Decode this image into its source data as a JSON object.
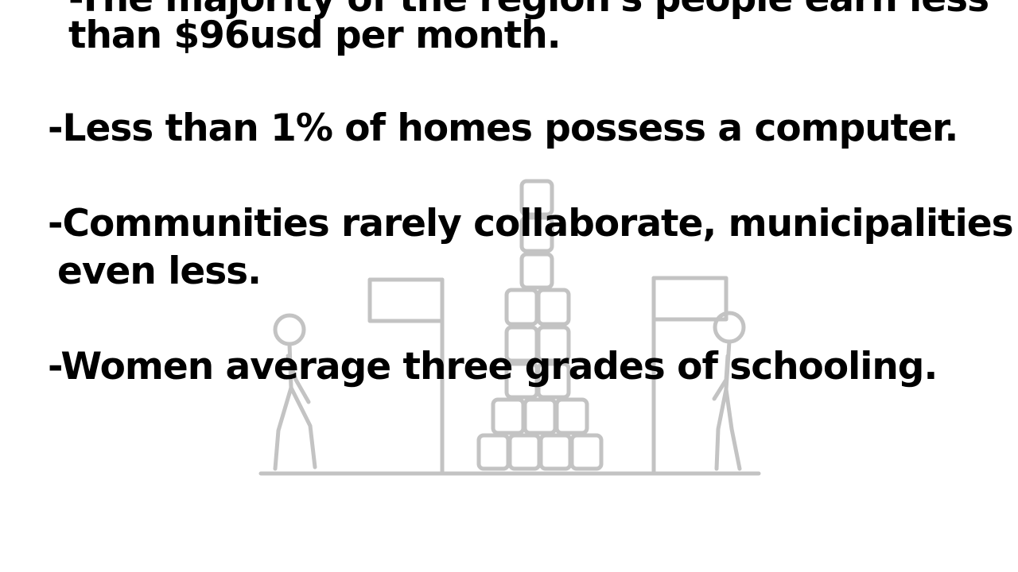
{
  "slide": {
    "lines": [
      "-The majority of the region's people earn less",
      "than $96usd per month.",
      "-Less than 1% of homes possess a computer.",
      "-Communities rarely collaborate, municipalities",
      "even less.",
      "-Women average three grades of schooling."
    ]
  }
}
